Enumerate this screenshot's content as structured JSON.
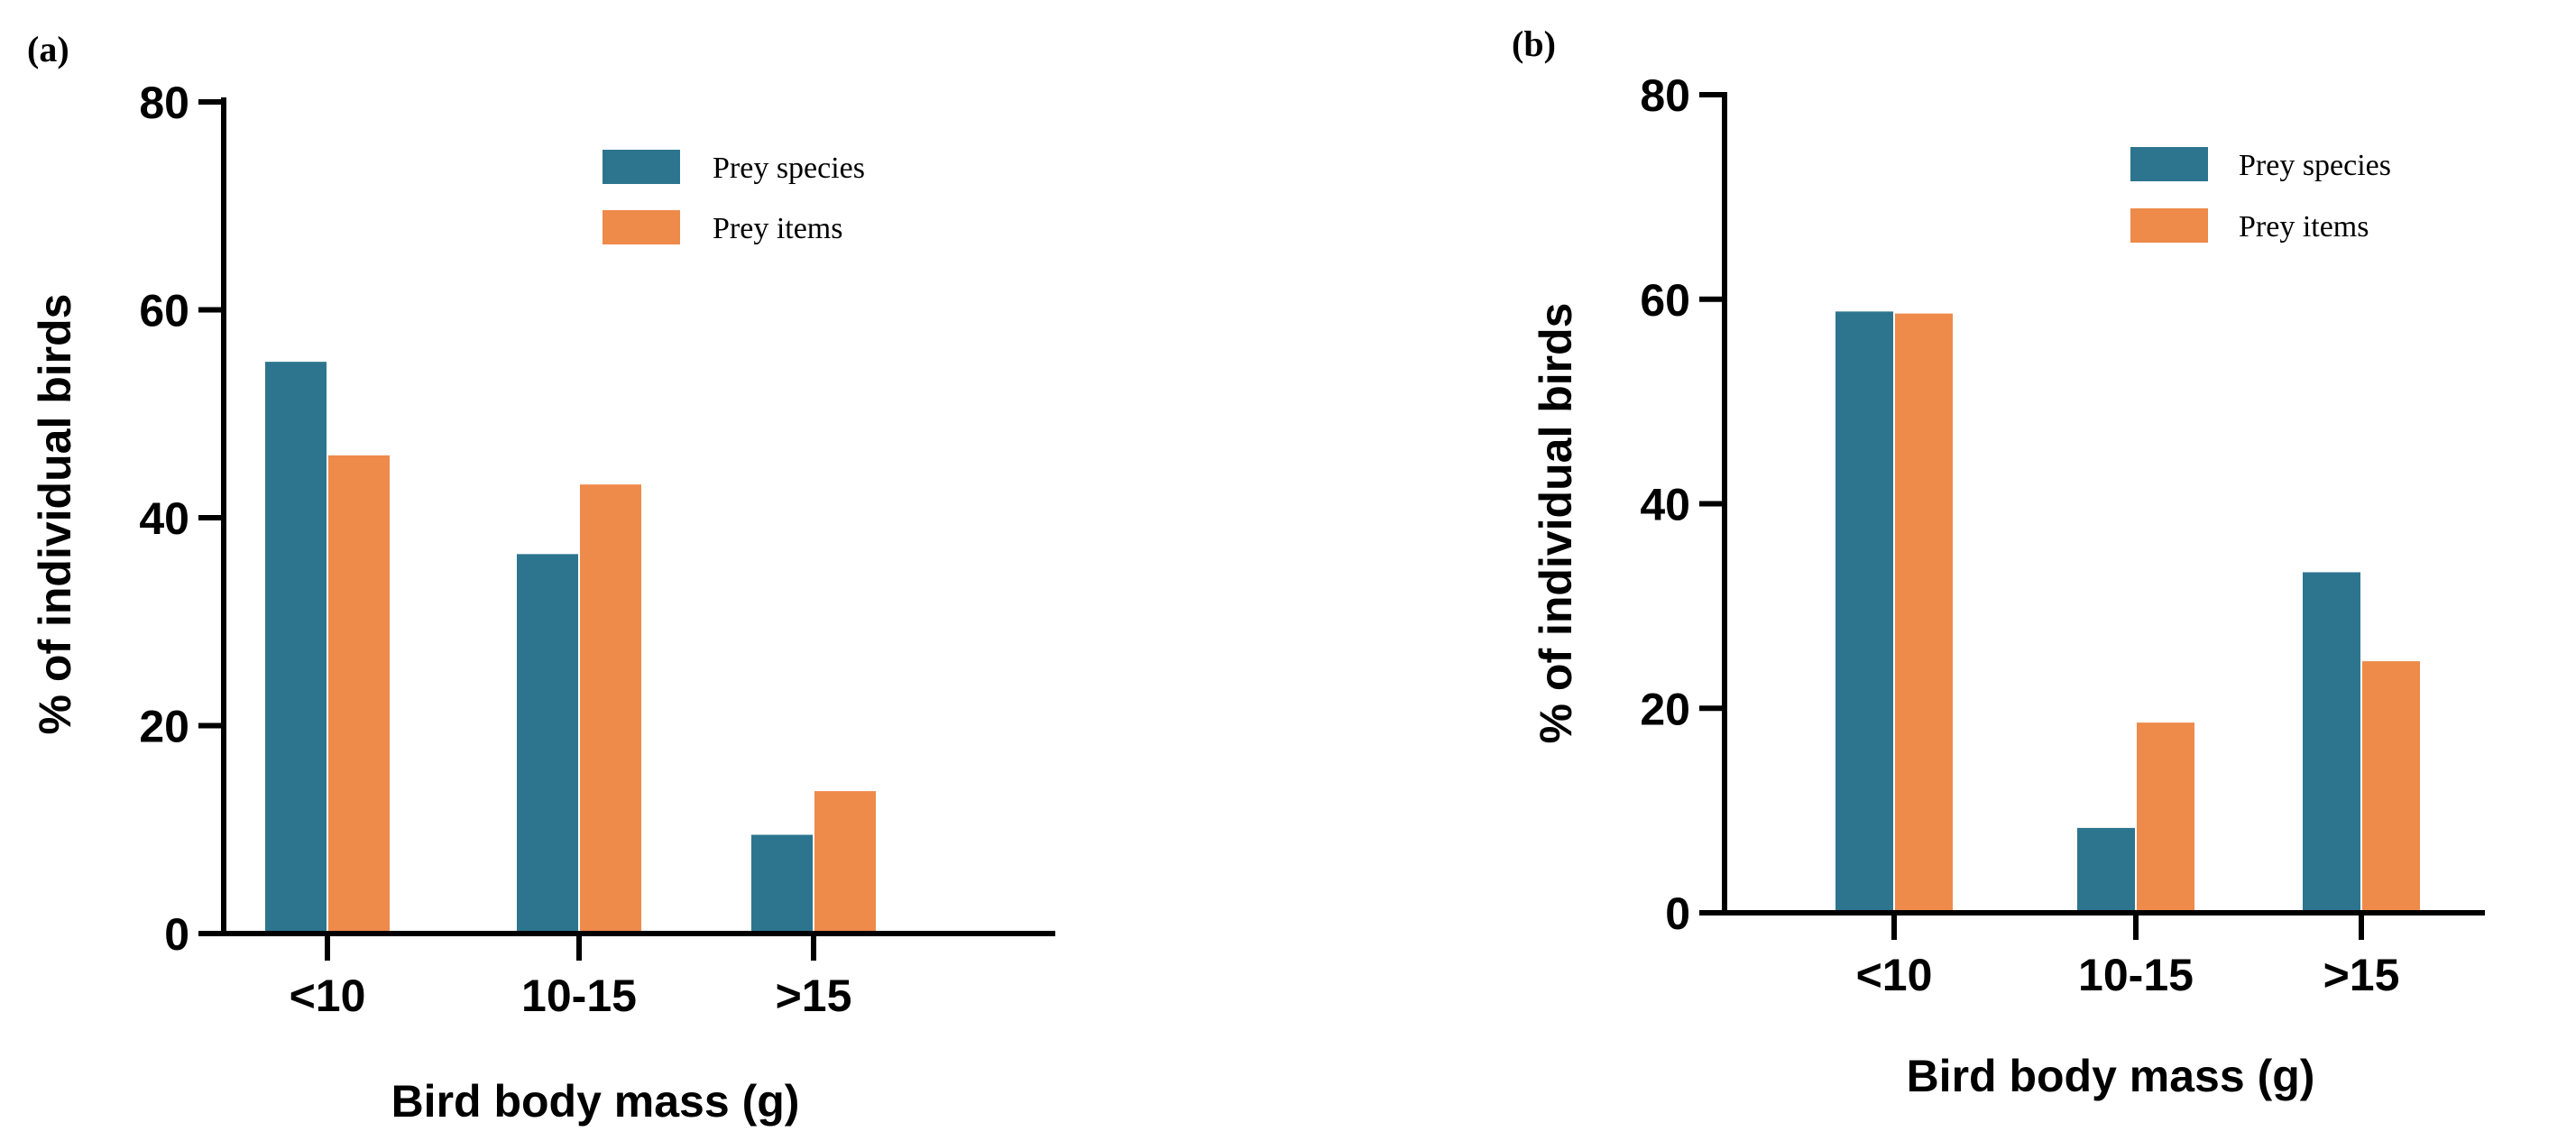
{
  "colors": {
    "prey_species": "#2d758f",
    "prey_items": "#ee8a4a",
    "axis": "#000000"
  },
  "chart_data": [
    {
      "type": "bar",
      "panel_label": "(a)",
      "categories": [
        "<10",
        "10-15",
        ">15"
      ],
      "series": [
        {
          "name": "Prey species",
          "values": [
            55,
            36.5,
            9.5
          ]
        },
        {
          "name": "Prey items",
          "values": [
            46,
            43.2,
            13.7
          ]
        }
      ],
      "xlabel": "Bird body mass (g)",
      "ylabel": "% of individual birds",
      "ylim": [
        0,
        80
      ],
      "yticks": [
        "0",
        "20",
        "40",
        "60",
        "80"
      ],
      "legend_position": "top-right",
      "grid": false
    },
    {
      "type": "bar",
      "panel_label": "(b)",
      "categories": [
        "<10",
        "10-15",
        ">15"
      ],
      "series": [
        {
          "name": "Prey species",
          "values": [
            58.8,
            8.3,
            33.3
          ]
        },
        {
          "name": "Prey items",
          "values": [
            58.6,
            18.6,
            24.6
          ]
        }
      ],
      "xlabel": "Bird body mass (g)",
      "ylabel": "% of individual birds",
      "ylim": [
        0,
        80
      ],
      "yticks": [
        "0",
        "20",
        "40",
        "60",
        "80"
      ],
      "legend_position": "top-right",
      "grid": false
    }
  ]
}
